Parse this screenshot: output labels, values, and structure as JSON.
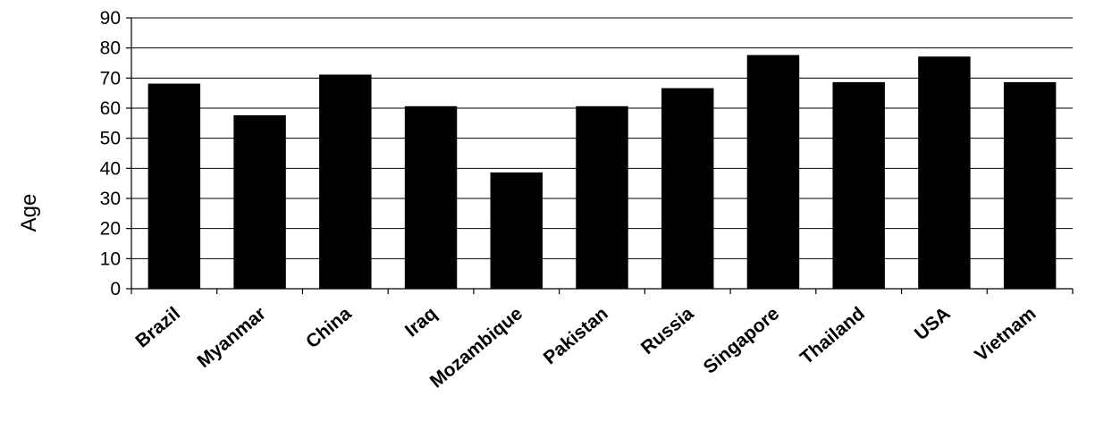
{
  "chart_data": {
    "type": "bar",
    "title": "",
    "xlabel": "",
    "ylabel": "Age",
    "ylim": [
      0,
      90
    ],
    "yticks": [
      0,
      10,
      20,
      30,
      40,
      50,
      60,
      70,
      80,
      90
    ],
    "grid": true,
    "categories": [
      "Brazil",
      "Myanmar",
      "China",
      "Iraq",
      "Mozambique",
      "Pakistan",
      "Russia",
      "Singapore",
      "Thailand",
      "USA",
      "Vietnam"
    ],
    "values": [
      68,
      57.5,
      71,
      60.5,
      38.5,
      60.5,
      66.5,
      77.5,
      68.5,
      77,
      68.5
    ],
    "bar_color": "#000000"
  }
}
